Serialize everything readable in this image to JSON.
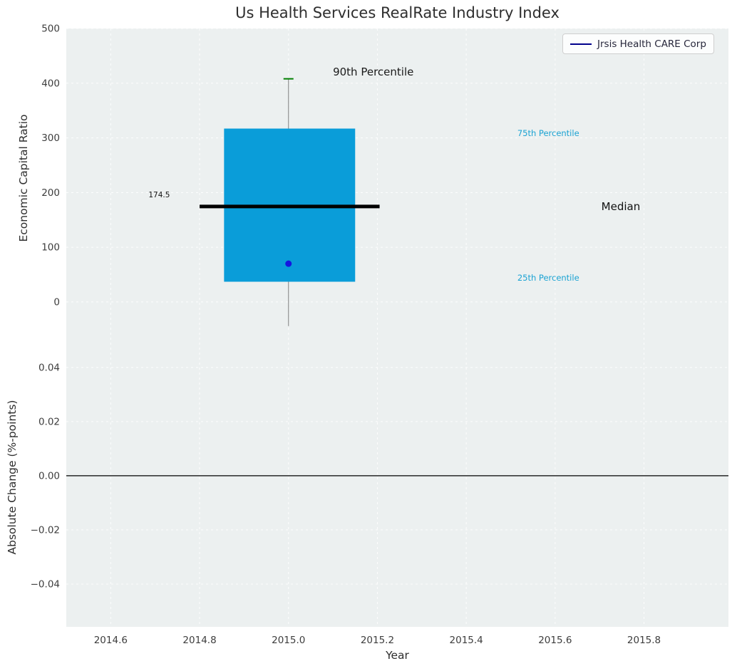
{
  "legend": {
    "label": "Jrsis Health CARE Corp",
    "line_color": "#00008b"
  },
  "chart_data": {
    "type": "box",
    "title": "Us Health Services RealRate Industry Index",
    "xlabel": "Year",
    "x_range": [
      2014.5,
      2015.99
    ],
    "x_ticks": [
      {
        "label": "2014.6",
        "value": 2014.6
      },
      {
        "label": "2014.8",
        "value": 2014.8
      },
      {
        "label": "2015.0",
        "value": 2015.0
      },
      {
        "label": "2015.2",
        "value": 2015.2
      },
      {
        "label": "2015.4",
        "value": 2015.4
      },
      {
        "label": "2015.6",
        "value": 2015.6
      },
      {
        "label": "2015.8",
        "value": 2015.8
      }
    ],
    "top_panel": {
      "ylabel": "Economic Capital Ratio",
      "y_range": [
        -47,
        500
      ],
      "y_ticks": [
        {
          "label": "0",
          "value": 0
        },
        {
          "label": "100",
          "value": 100
        },
        {
          "label": "200",
          "value": 200
        },
        {
          "label": "300",
          "value": 300
        },
        {
          "label": "400",
          "value": 400
        },
        {
          "label": "500",
          "value": 500
        }
      ],
      "box": {
        "x": 2015.0,
        "box_left": 2014.855,
        "box_right": 2015.15,
        "q1": 37,
        "median": 174.5,
        "q3": 317,
        "p90": 408,
        "whisker_low": -44,
        "median_line_x_start": 2014.8,
        "median_line_x_end": 2015.205,
        "company_point": {
          "name": "Jrsis Health CARE Corp",
          "x": 2015.0,
          "y": 70
        }
      },
      "annotations": [
        {
          "text": "90th Percentile",
          "x": 2015.1,
          "y": 420,
          "color": "#1a1a1a",
          "size": 15
        },
        {
          "text": "75th Percentile",
          "x": 2015.515,
          "y": 308,
          "color": "#1ba3d3",
          "size": 11.5
        },
        {
          "text": "Median",
          "x": 2015.704,
          "y": 174.5,
          "color": "#111111",
          "size": 15
        },
        {
          "text": "25th Percentile",
          "x": 2015.515,
          "y": 44,
          "color": "#1ba3d3",
          "size": 11.5
        },
        {
          "text": "174.5",
          "x": 2014.685,
          "y": 195,
          "color": "#111111",
          "size": 10.5
        }
      ]
    },
    "bottom_panel": {
      "ylabel": "Absolute Change (%-points)",
      "y_range": [
        -0.0558,
        0.0547
      ],
      "zero_line": 0.0,
      "y_ticks": [
        {
          "label": "0.04",
          "value": 0.04
        },
        {
          "label": "0.02",
          "value": 0.02
        },
        {
          "label": "0.00",
          "value": 0.0
        },
        {
          "label": "−0.02",
          "value": -0.02
        },
        {
          "label": "−0.04",
          "value": -0.04
        }
      ]
    },
    "colors": {
      "axes_background": "#ecf0f0",
      "grid": "#ffffff",
      "box_fill": "#0a9dd9",
      "median_line": "#000000",
      "whisker": "#808080",
      "p90_cap": "#008000",
      "company_point": "#1515e0",
      "zero_line": "#000000",
      "tick_text": "#3d3d3d"
    }
  }
}
